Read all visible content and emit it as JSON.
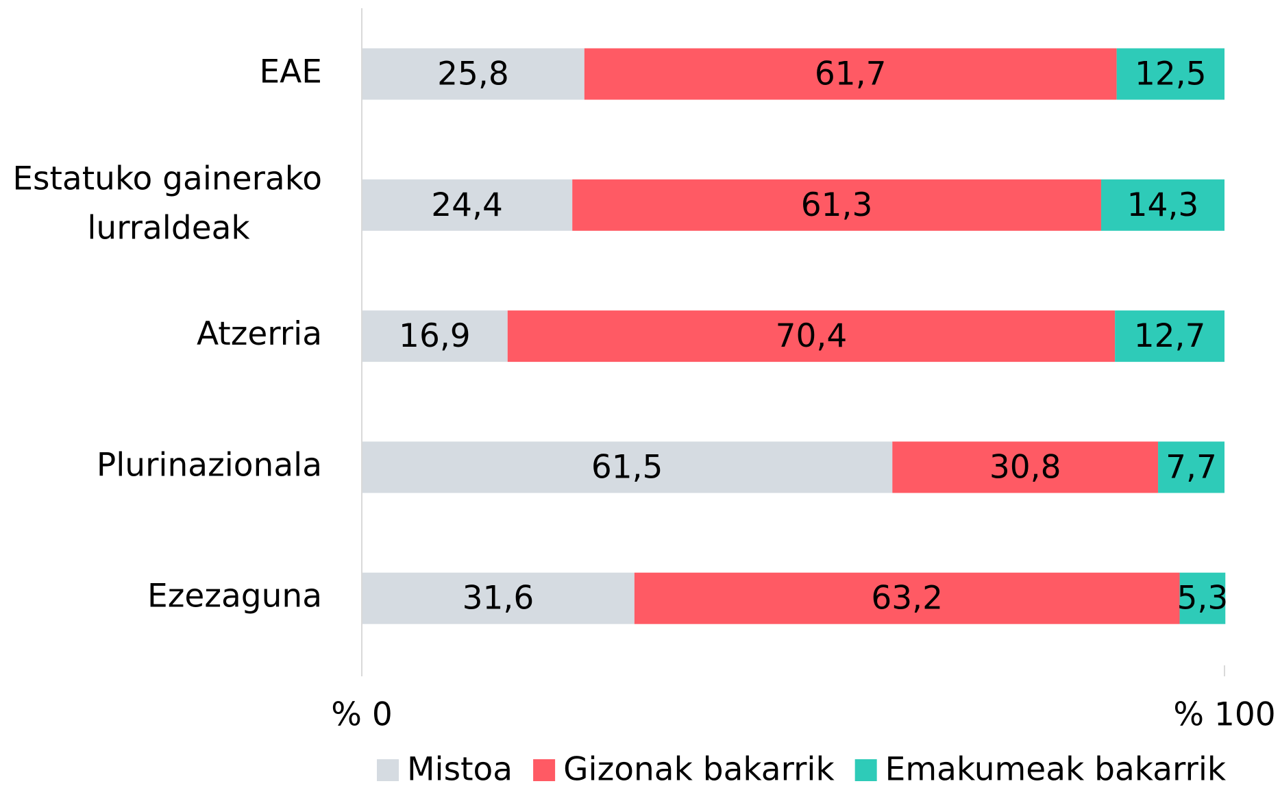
{
  "chart_data": {
    "type": "stacked-barh",
    "categories": [
      "EAE",
      "Estatuko gainerako lurraldeak",
      "Atzerria",
      "Plurinazionala",
      "Ezezaguna"
    ],
    "series": [
      {
        "name": "Mistoa",
        "color": "#d5dbe1",
        "values": [
          25.8,
          24.4,
          16.9,
          61.5,
          31.6
        ],
        "value_labels": [
          "25,8",
          "24,4",
          "16,9",
          "61,5",
          "31,6"
        ]
      },
      {
        "name": "Gizonak bakarrik",
        "color": "#ff5a64",
        "values": [
          61.7,
          61.3,
          70.4,
          30.8,
          63.2
        ],
        "value_labels": [
          "61,7",
          "61,3",
          "70,4",
          "30,8",
          "63,2"
        ]
      },
      {
        "name": "Emakumeak bakarrik",
        "color": "#2ecbb8",
        "values": [
          12.5,
          14.3,
          12.7,
          7.7,
          5.3
        ],
        "value_labels": [
          "12,5",
          "14,3",
          "12,7",
          "7,7",
          "5,3"
        ]
      }
    ],
    "xlim": [
      0,
      100
    ],
    "xticks": [
      {
        "value": 0,
        "label": "% 0"
      },
      {
        "value": 100,
        "label": "% 100"
      }
    ],
    "legend": "bottom"
  }
}
